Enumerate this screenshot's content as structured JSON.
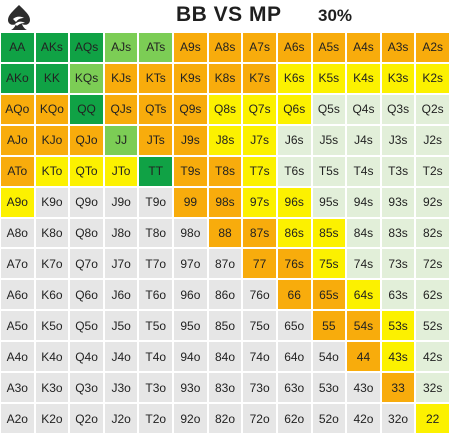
{
  "header": {
    "title": "BB VS MP",
    "percent": "30%"
  },
  "colors": {
    "raise_green": "#10a245",
    "call_light_green": "#7ccd55",
    "orange": "#f8ac0c",
    "yellow": "#fcf100",
    "fold_light": "#e2efd9",
    "fold_gray": "#e6e6e6"
  },
  "grid": {
    "rows": [
      [
        {
          "hand": "AA",
          "c": "g"
        },
        {
          "hand": "AKs",
          "c": "g"
        },
        {
          "hand": "AQs",
          "c": "g"
        },
        {
          "hand": "AJs",
          "c": "lg"
        },
        {
          "hand": "ATs",
          "c": "lg"
        },
        {
          "hand": "A9s",
          "c": "o"
        },
        {
          "hand": "A8s",
          "c": "o"
        },
        {
          "hand": "A7s",
          "c": "o"
        },
        {
          "hand": "A6s",
          "c": "o"
        },
        {
          "hand": "A5s",
          "c": "o"
        },
        {
          "hand": "A4s",
          "c": "o"
        },
        {
          "hand": "A3s",
          "c": "o"
        },
        {
          "hand": "A2s",
          "c": "o"
        }
      ],
      [
        {
          "hand": "AKo",
          "c": "g"
        },
        {
          "hand": "KK",
          "c": "g"
        },
        {
          "hand": "KQs",
          "c": "lg"
        },
        {
          "hand": "KJs",
          "c": "o"
        },
        {
          "hand": "KTs",
          "c": "o"
        },
        {
          "hand": "K9s",
          "c": "o"
        },
        {
          "hand": "K8s",
          "c": "o"
        },
        {
          "hand": "K7s",
          "c": "o"
        },
        {
          "hand": "K6s",
          "c": "y"
        },
        {
          "hand": "K5s",
          "c": "y"
        },
        {
          "hand": "K4s",
          "c": "y"
        },
        {
          "hand": "K3s",
          "c": "y"
        },
        {
          "hand": "K2s",
          "c": "y"
        }
      ],
      [
        {
          "hand": "AQo",
          "c": "o"
        },
        {
          "hand": "KQo",
          "c": "o"
        },
        {
          "hand": "QQ",
          "c": "g"
        },
        {
          "hand": "QJs",
          "c": "o"
        },
        {
          "hand": "QTs",
          "c": "o"
        },
        {
          "hand": "Q9s",
          "c": "o"
        },
        {
          "hand": "Q8s",
          "c": "y"
        },
        {
          "hand": "Q7s",
          "c": "y"
        },
        {
          "hand": "Q6s",
          "c": "y"
        },
        {
          "hand": "Q5s",
          "c": "f"
        },
        {
          "hand": "Q4s",
          "c": "f"
        },
        {
          "hand": "Q3s",
          "c": "f"
        },
        {
          "hand": "Q2s",
          "c": "f"
        }
      ],
      [
        {
          "hand": "AJo",
          "c": "o"
        },
        {
          "hand": "KJo",
          "c": "o"
        },
        {
          "hand": "QJo",
          "c": "o"
        },
        {
          "hand": "JJ",
          "c": "lg"
        },
        {
          "hand": "JTs",
          "c": "o"
        },
        {
          "hand": "J9s",
          "c": "o"
        },
        {
          "hand": "J8s",
          "c": "y"
        },
        {
          "hand": "J7s",
          "c": "y"
        },
        {
          "hand": "J6s",
          "c": "f"
        },
        {
          "hand": "J5s",
          "c": "f"
        },
        {
          "hand": "J4s",
          "c": "f"
        },
        {
          "hand": "J3s",
          "c": "f"
        },
        {
          "hand": "J2s",
          "c": "f"
        }
      ],
      [
        {
          "hand": "ATo",
          "c": "o"
        },
        {
          "hand": "KTo",
          "c": "y"
        },
        {
          "hand": "QTo",
          "c": "y"
        },
        {
          "hand": "JTo",
          "c": "y"
        },
        {
          "hand": "TT",
          "c": "g"
        },
        {
          "hand": "T9s",
          "c": "o"
        },
        {
          "hand": "T8s",
          "c": "o"
        },
        {
          "hand": "T7s",
          "c": "y"
        },
        {
          "hand": "T6s",
          "c": "f"
        },
        {
          "hand": "T5s",
          "c": "f"
        },
        {
          "hand": "T4s",
          "c": "f"
        },
        {
          "hand": "T3s",
          "c": "f"
        },
        {
          "hand": "T2s",
          "c": "f"
        }
      ],
      [
        {
          "hand": "A9o",
          "c": "y"
        },
        {
          "hand": "K9o",
          "c": "n"
        },
        {
          "hand": "Q9o",
          "c": "n"
        },
        {
          "hand": "J9o",
          "c": "n"
        },
        {
          "hand": "T9o",
          "c": "n"
        },
        {
          "hand": "99",
          "c": "o"
        },
        {
          "hand": "98s",
          "c": "o"
        },
        {
          "hand": "97s",
          "c": "y"
        },
        {
          "hand": "96s",
          "c": "y"
        },
        {
          "hand": "95s",
          "c": "f"
        },
        {
          "hand": "94s",
          "c": "f"
        },
        {
          "hand": "93s",
          "c": "f"
        },
        {
          "hand": "92s",
          "c": "f"
        }
      ],
      [
        {
          "hand": "A8o",
          "c": "n"
        },
        {
          "hand": "K8o",
          "c": "n"
        },
        {
          "hand": "Q8o",
          "c": "n"
        },
        {
          "hand": "J8o",
          "c": "n"
        },
        {
          "hand": "T8o",
          "c": "n"
        },
        {
          "hand": "98o",
          "c": "n"
        },
        {
          "hand": "88",
          "c": "o"
        },
        {
          "hand": "87s",
          "c": "o"
        },
        {
          "hand": "86s",
          "c": "y"
        },
        {
          "hand": "85s",
          "c": "y"
        },
        {
          "hand": "84s",
          "c": "f"
        },
        {
          "hand": "83s",
          "c": "f"
        },
        {
          "hand": "82s",
          "c": "f"
        }
      ],
      [
        {
          "hand": "A7o",
          "c": "n"
        },
        {
          "hand": "K7o",
          "c": "n"
        },
        {
          "hand": "Q7o",
          "c": "n"
        },
        {
          "hand": "J7o",
          "c": "n"
        },
        {
          "hand": "T7o",
          "c": "n"
        },
        {
          "hand": "97o",
          "c": "n"
        },
        {
          "hand": "87o",
          "c": "n"
        },
        {
          "hand": "77",
          "c": "o"
        },
        {
          "hand": "76s",
          "c": "o"
        },
        {
          "hand": "75s",
          "c": "y"
        },
        {
          "hand": "74s",
          "c": "f"
        },
        {
          "hand": "73s",
          "c": "f"
        },
        {
          "hand": "72s",
          "c": "f"
        }
      ],
      [
        {
          "hand": "A6o",
          "c": "n"
        },
        {
          "hand": "K6o",
          "c": "n"
        },
        {
          "hand": "Q6o",
          "c": "n"
        },
        {
          "hand": "J6o",
          "c": "n"
        },
        {
          "hand": "T6o",
          "c": "n"
        },
        {
          "hand": "96o",
          "c": "n"
        },
        {
          "hand": "86o",
          "c": "n"
        },
        {
          "hand": "76o",
          "c": "n"
        },
        {
          "hand": "66",
          "c": "o"
        },
        {
          "hand": "65s",
          "c": "o"
        },
        {
          "hand": "64s",
          "c": "y"
        },
        {
          "hand": "63s",
          "c": "f"
        },
        {
          "hand": "62s",
          "c": "f"
        }
      ],
      [
        {
          "hand": "A5o",
          "c": "n"
        },
        {
          "hand": "K5o",
          "c": "n"
        },
        {
          "hand": "Q5o",
          "c": "n"
        },
        {
          "hand": "J5o",
          "c": "n"
        },
        {
          "hand": "T5o",
          "c": "n"
        },
        {
          "hand": "95o",
          "c": "n"
        },
        {
          "hand": "85o",
          "c": "n"
        },
        {
          "hand": "75o",
          "c": "n"
        },
        {
          "hand": "65o",
          "c": "n"
        },
        {
          "hand": "55",
          "c": "o"
        },
        {
          "hand": "54s",
          "c": "o"
        },
        {
          "hand": "53s",
          "c": "y"
        },
        {
          "hand": "52s",
          "c": "f"
        }
      ],
      [
        {
          "hand": "A4o",
          "c": "n"
        },
        {
          "hand": "K4o",
          "c": "n"
        },
        {
          "hand": "Q4o",
          "c": "n"
        },
        {
          "hand": "J4o",
          "c": "n"
        },
        {
          "hand": "T4o",
          "c": "n"
        },
        {
          "hand": "94o",
          "c": "n"
        },
        {
          "hand": "84o",
          "c": "n"
        },
        {
          "hand": "74o",
          "c": "n"
        },
        {
          "hand": "64o",
          "c": "n"
        },
        {
          "hand": "54o",
          "c": "n"
        },
        {
          "hand": "44",
          "c": "o"
        },
        {
          "hand": "43s",
          "c": "y"
        },
        {
          "hand": "42s",
          "c": "f"
        }
      ],
      [
        {
          "hand": "A3o",
          "c": "n"
        },
        {
          "hand": "K3o",
          "c": "n"
        },
        {
          "hand": "Q3o",
          "c": "n"
        },
        {
          "hand": "J3o",
          "c": "n"
        },
        {
          "hand": "T3o",
          "c": "n"
        },
        {
          "hand": "93o",
          "c": "n"
        },
        {
          "hand": "83o",
          "c": "n"
        },
        {
          "hand": "73o",
          "c": "n"
        },
        {
          "hand": "63o",
          "c": "n"
        },
        {
          "hand": "53o",
          "c": "n"
        },
        {
          "hand": "43o",
          "c": "n"
        },
        {
          "hand": "33",
          "c": "o"
        },
        {
          "hand": "32s",
          "c": "f"
        }
      ],
      [
        {
          "hand": "A2o",
          "c": "n"
        },
        {
          "hand": "K2o",
          "c": "n"
        },
        {
          "hand": "Q2o",
          "c": "n"
        },
        {
          "hand": "J2o",
          "c": "n"
        },
        {
          "hand": "T2o",
          "c": "n"
        },
        {
          "hand": "92o",
          "c": "n"
        },
        {
          "hand": "82o",
          "c": "n"
        },
        {
          "hand": "72o",
          "c": "n"
        },
        {
          "hand": "62o",
          "c": "n"
        },
        {
          "hand": "52o",
          "c": "n"
        },
        {
          "hand": "42o",
          "c": "n"
        },
        {
          "hand": "32o",
          "c": "n"
        },
        {
          "hand": "22",
          "c": "y"
        }
      ]
    ]
  }
}
